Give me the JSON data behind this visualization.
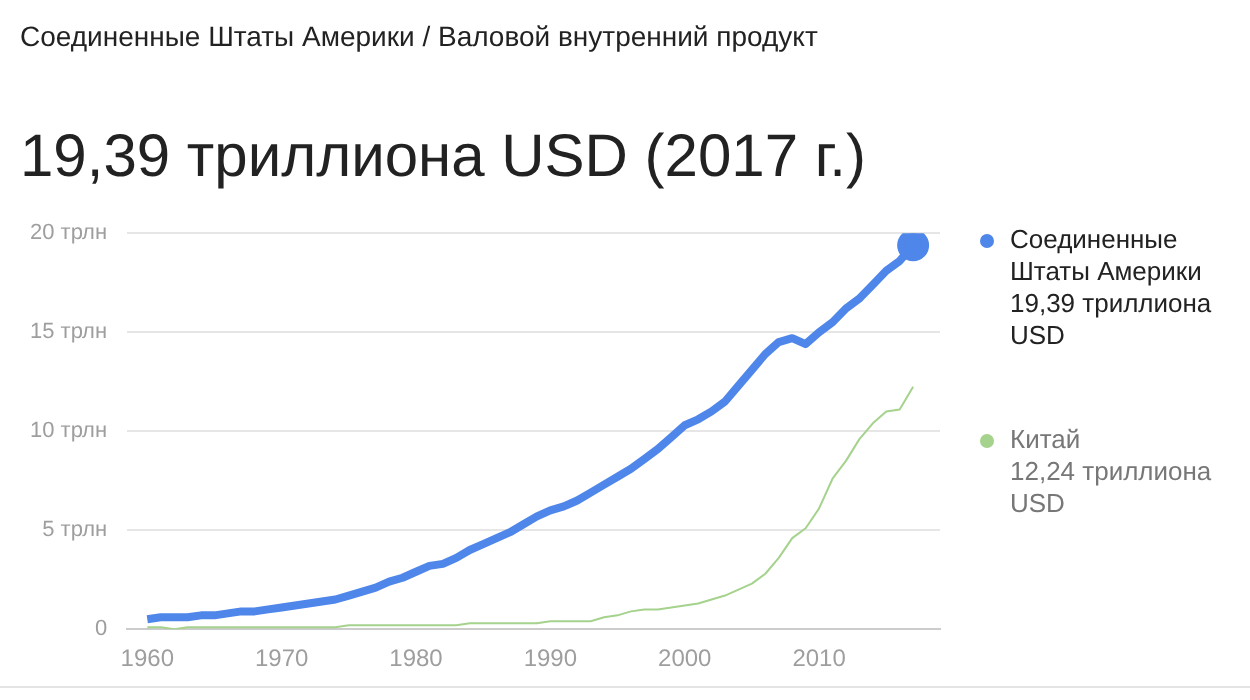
{
  "chart_data": {
    "type": "line",
    "subtitle": "Соединенные Штаты Америки / Валовой внутренний продукт",
    "title": "19,39 триллиона USD (2017 г.)",
    "x": [
      1960,
      1961,
      1962,
      1963,
      1964,
      1965,
      1966,
      1967,
      1968,
      1969,
      1970,
      1971,
      1972,
      1973,
      1974,
      1975,
      1976,
      1977,
      1978,
      1979,
      1980,
      1981,
      1982,
      1983,
      1984,
      1985,
      1986,
      1987,
      1988,
      1989,
      1990,
      1991,
      1992,
      1993,
      1994,
      1995,
      1996,
      1997,
      1998,
      1999,
      2000,
      2001,
      2002,
      2003,
      2004,
      2005,
      2006,
      2007,
      2008,
      2009,
      2010,
      2011,
      2012,
      2013,
      2014,
      2015,
      2016,
      2017
    ],
    "series": [
      {
        "name": "Соединенные Штаты Америки",
        "color": "#4e86ea",
        "values": [
          0.5,
          0.6,
          0.6,
          0.6,
          0.7,
          0.7,
          0.8,
          0.9,
          0.9,
          1.0,
          1.1,
          1.2,
          1.3,
          1.4,
          1.5,
          1.7,
          1.9,
          2.1,
          2.4,
          2.6,
          2.9,
          3.2,
          3.3,
          3.6,
          4.0,
          4.3,
          4.6,
          4.9,
          5.3,
          5.7,
          6.0,
          6.2,
          6.5,
          6.9,
          7.3,
          7.7,
          8.1,
          8.6,
          9.1,
          9.7,
          10.3,
          10.6,
          11.0,
          11.5,
          12.3,
          13.1,
          13.9,
          14.5,
          14.7,
          14.4,
          15.0,
          15.5,
          16.2,
          16.7,
          17.4,
          18.1,
          18.6,
          19.39
        ]
      },
      {
        "name": "Китай",
        "color": "#a5d28d",
        "values": [
          0.1,
          0.1,
          0.0,
          0.1,
          0.1,
          0.1,
          0.1,
          0.1,
          0.1,
          0.1,
          0.1,
          0.1,
          0.1,
          0.1,
          0.1,
          0.2,
          0.2,
          0.2,
          0.2,
          0.2,
          0.2,
          0.2,
          0.2,
          0.2,
          0.3,
          0.3,
          0.3,
          0.3,
          0.3,
          0.3,
          0.4,
          0.4,
          0.4,
          0.4,
          0.6,
          0.7,
          0.9,
          1.0,
          1.0,
          1.1,
          1.2,
          1.3,
          1.5,
          1.7,
          2.0,
          2.3,
          2.8,
          3.6,
          4.6,
          5.1,
          6.1,
          7.6,
          8.5,
          9.6,
          10.4,
          11.0,
          11.1,
          12.24
        ]
      }
    ],
    "xlim": [
      1958.5,
      2019
    ],
    "xticks": [
      1960,
      1970,
      1980,
      1990,
      2000,
      2010
    ],
    "ylim": [
      0,
      20
    ],
    "yticks": [
      0,
      {
        "value": 5,
        "label": "5 трлн"
      },
      {
        "value": 10,
        "label": "10 трлн"
      },
      {
        "value": 15,
        "label": "15 трлн"
      },
      {
        "value": 20,
        "label": "20 трлн"
      }
    ],
    "annotations": [
      "19,39 триллиона USD",
      "12,24 триллиона USD"
    ],
    "grid": "y",
    "legend": "right"
  }
}
